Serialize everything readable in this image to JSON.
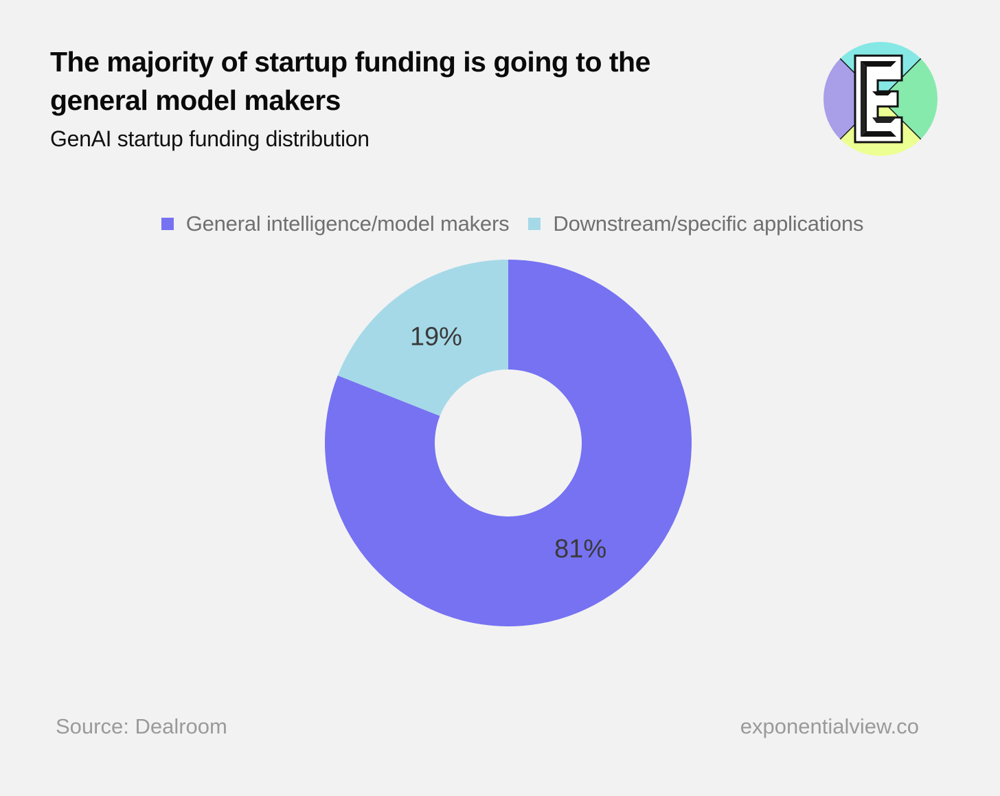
{
  "header": {
    "title": "The majority of startup funding is going to the general model makers",
    "subtitle": "GenAI startup funding distribution"
  },
  "logo": {
    "letter": "E",
    "colors": [
      "#86e8e4",
      "#86eaad",
      "#ecff92",
      "#a99ee8"
    ]
  },
  "chart_data": {
    "type": "pie",
    "donut": true,
    "title": "The majority of startup funding is going to the general model makers",
    "subtitle": "GenAI startup funding distribution",
    "legend_position": "top",
    "series": [
      {
        "name": "General intelligence/model makers",
        "value": 81,
        "label": "81%",
        "color": "#7672f2"
      },
      {
        "name": "Downstream/specific applications",
        "value": 19,
        "label": "19%",
        "color": "#a5d9e8"
      }
    ]
  },
  "footer": {
    "source": "Source: Dealroom",
    "site": "exponentialview.co"
  }
}
